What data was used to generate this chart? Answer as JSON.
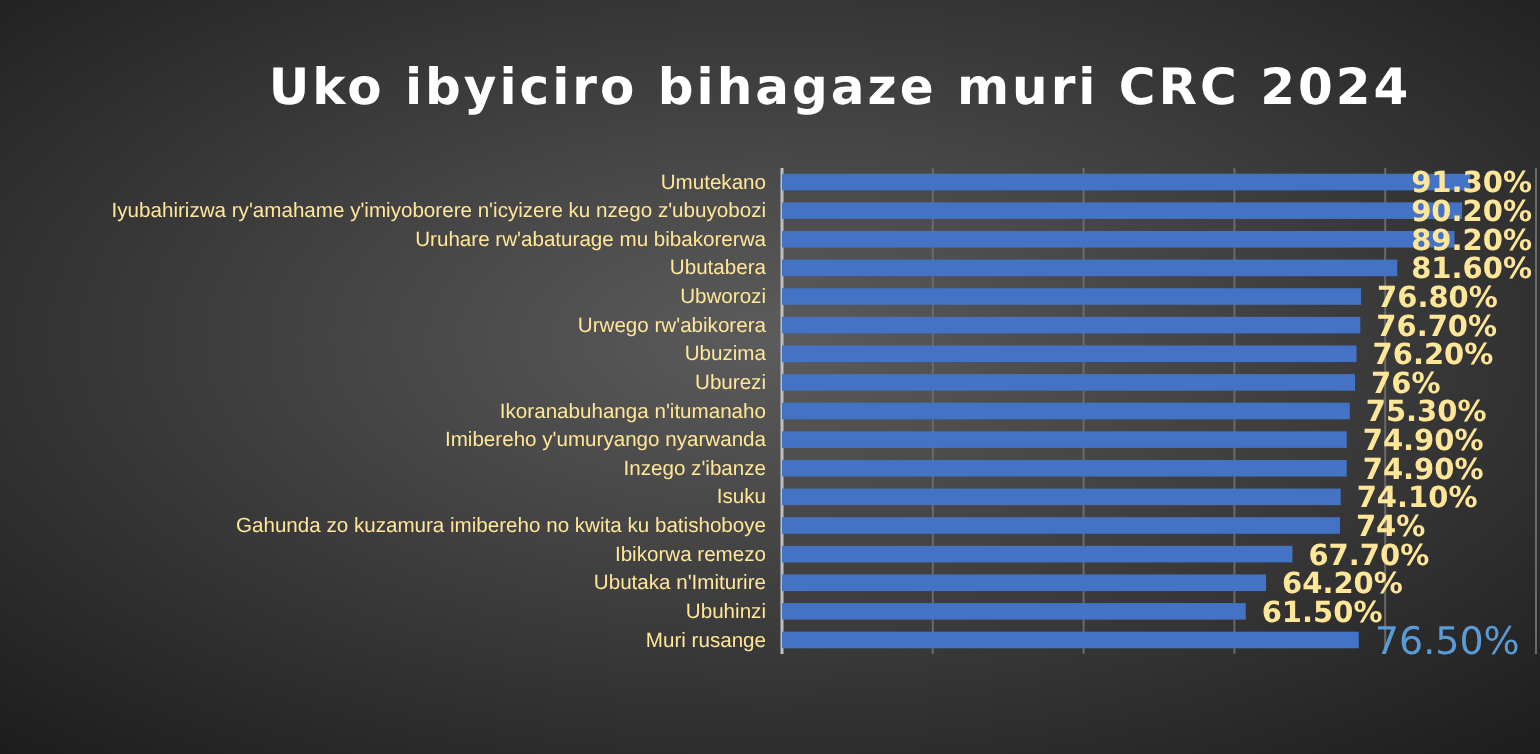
{
  "chart_data": {
    "type": "bar",
    "orientation": "horizontal",
    "title": "Uko ibyiciro bihagaze muri CRC 2024",
    "categories": [
      "Umutekano",
      "Iyubahirizwa ry'amahame y'imiyoborere n'icyizere ku nzego z'ubuyobozi",
      "Uruhare rw'abaturage mu bibakorerwa",
      "Ubutabera",
      "Ubworozi",
      "Urwego rw'abikorera",
      "Ubuzima",
      "Uburezi",
      "Ikoranabuhanga n'itumanaho",
      "Imibereho y'umuryango nyarwanda",
      "Inzego z'ibanze",
      "Isuku",
      "Gahunda zo kuzamura imibereho no kwita ku batishoboye",
      "Ibikorwa remezo",
      "Ubutaka n'Imiturire",
      "Ubuhinzi",
      "Muri rusange"
    ],
    "values": [
      91.3,
      90.2,
      89.2,
      81.6,
      76.8,
      76.7,
      76.2,
      76,
      75.3,
      74.9,
      74.9,
      74.1,
      74,
      67.7,
      64.2,
      61.5,
      76.5
    ],
    "value_labels": [
      "91.30%",
      "90.20%",
      "89.20%",
      "81.60%",
      "76.80%",
      "76.70%",
      "76.20%",
      "76%",
      "75.30%",
      "74.90%",
      "74.90%",
      "74.10%",
      "74%",
      "67.70%",
      "64.20%",
      "61.50%",
      "76.50%"
    ],
    "color": "#4472c4",
    "xlim": [
      0,
      100
    ],
    "xticks": [
      {
        "value": 0,
        "label": null
      },
      {
        "value": 20,
        "label": null
      },
      {
        "value": 40,
        "label": null
      },
      {
        "value": 60,
        "label": null
      },
      {
        "value": 80,
        "label": null
      },
      {
        "value": 100,
        "label": null
      }
    ],
    "grid": "x",
    "tick_labels": "y"
  }
}
